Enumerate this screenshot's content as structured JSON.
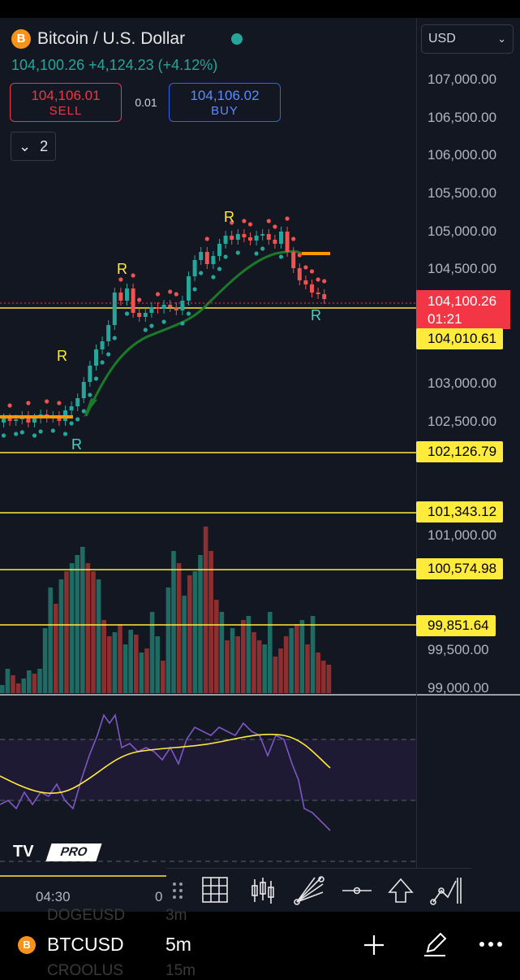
{
  "header": {
    "title": "Bitcoin / U.S. Dollar",
    "coin_letter": "B",
    "change": "104,100.26 +4,124.23 (+4.12%)",
    "sell_price": "104,106.01",
    "sell_label": "SELL",
    "spread": "0.01",
    "buy_price": "104,106.02",
    "buy_label": "BUY",
    "indicators_count": "2"
  },
  "currency_select": {
    "value": "USD"
  },
  "price_axis": {
    "labels": [
      "107,000.00",
      "106,500.00",
      "106,000.00",
      "105,500.00",
      "105,000.00",
      "104,500.00",
      "103,000.00",
      "102,500.00",
      "101,000.00",
      "99,500.00",
      "99,000.00"
    ]
  },
  "current_price": {
    "price": "104,100.26",
    "countdown": "01:21"
  },
  "levels": [
    "104,010.61",
    "102,126.79",
    "101,343.12",
    "100,574.98",
    "99,851.64"
  ],
  "marks": {
    "r": "R"
  },
  "time_axis": {
    "labels": [
      "04:30",
      "0"
    ]
  },
  "brand": {
    "logo": "TV",
    "tag": "PRO"
  },
  "bottom": {
    "coin_letter": "B",
    "symbol": "BTCUSD",
    "interval": "5m",
    "ghost_symbol_1": "DOGEUSD",
    "ghost_interval_1": "3m",
    "ghost_symbol_2": "CROOLUS",
    "ghost_interval_2": "15m"
  },
  "colors": {
    "up": "#26a69a",
    "down": "#ef5350",
    "level": "#ffeb3b",
    "accent": "#f7931a"
  },
  "icons": [
    "chevron-down-icon",
    "grid-icon",
    "candles-icon",
    "fib-fan-icon",
    "horizontal-line-icon",
    "arrow-up-icon",
    "trend-icon",
    "plus-icon",
    "pencil-icon",
    "more-icon"
  ]
}
